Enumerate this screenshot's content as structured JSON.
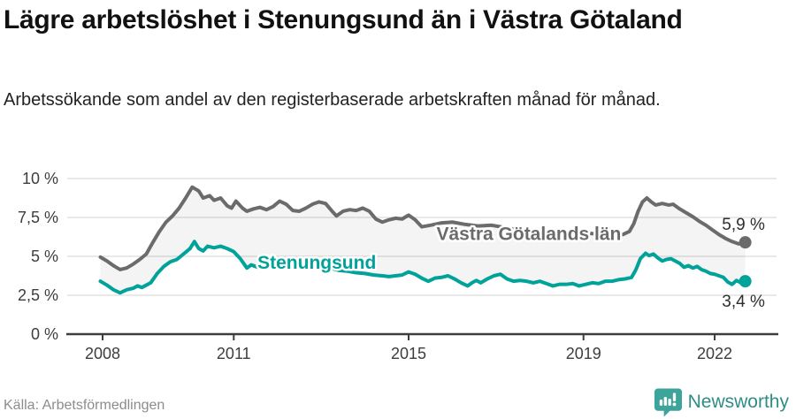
{
  "header": {
    "title": "Lägre arbetslöshet i Stenungsund än i Västra Götaland",
    "subtitle": "Arbetssökande som andel av den registerbaserade arbetskraften månad för månad."
  },
  "footer": {
    "source": "Källa: Arbetsförmedlingen",
    "brand": "Newsworthy"
  },
  "colors": {
    "title": "#111111",
    "axis_text": "#3d3d3d",
    "gridline": "#e2e2e2",
    "axis_line": "#3d3d3d",
    "band_fill": "rgba(0,0,0,0.045)",
    "brand_icon": "#3da49b",
    "brand_text": "#2f8d86"
  },
  "chart_data": {
    "type": "line",
    "title": "Lägre arbetslöshet i Stenungsund än i Västra Götaland",
    "subtitle": "Arbetssökande som andel av den registerbaserade arbetskraften månad för månad.",
    "xlabel": "",
    "ylabel": "",
    "grid": true,
    "legend_position": "inline-labels",
    "xlim": [
      2007.8,
      2023.4
    ],
    "ylim": [
      0,
      10.7
    ],
    "x_ticks": [
      {
        "value": 2008,
        "label": "2008"
      },
      {
        "value": 2011,
        "label": "2011"
      },
      {
        "value": 2015,
        "label": "2015"
      },
      {
        "value": 2019,
        "label": "2019"
      },
      {
        "value": 2022,
        "label": "2022"
      }
    ],
    "y_ticks": [
      {
        "value": 0,
        "label": "0 %"
      },
      {
        "value": 2.5,
        "label": "2,5 %"
      },
      {
        "value": 5,
        "label": "5 %"
      },
      {
        "value": 7.5,
        "label": "7,5 %"
      },
      {
        "value": 10,
        "label": "10 %"
      }
    ],
    "band_fill": "rgba(0,0,0,0.045)",
    "series": [
      {
        "name": "Västra Götalands län",
        "color": "#6b6b6b",
        "end_value": 5.9,
        "end_value_label": {
          "text": "5,9 %",
          "x": 2023.15,
          "y": 7.1
        },
        "name_label": {
          "x": 2017.75,
          "y": 6.45
        },
        "points": [
          [
            2007.95,
            4.95
          ],
          [
            2008.1,
            4.7
          ],
          [
            2008.25,
            4.4
          ],
          [
            2008.4,
            4.15
          ],
          [
            2008.55,
            4.25
          ],
          [
            2008.7,
            4.5
          ],
          [
            2008.85,
            4.8
          ],
          [
            2009.0,
            5.15
          ],
          [
            2009.15,
            5.9
          ],
          [
            2009.3,
            6.6
          ],
          [
            2009.45,
            7.2
          ],
          [
            2009.6,
            7.6
          ],
          [
            2009.75,
            8.1
          ],
          [
            2009.9,
            8.75
          ],
          [
            2010.05,
            9.45
          ],
          [
            2010.2,
            9.2
          ],
          [
            2010.3,
            8.75
          ],
          [
            2010.45,
            8.9
          ],
          [
            2010.55,
            8.6
          ],
          [
            2010.7,
            8.75
          ],
          [
            2010.85,
            8.25
          ],
          [
            2010.95,
            8.1
          ],
          [
            2011.05,
            8.55
          ],
          [
            2011.2,
            8.1
          ],
          [
            2011.3,
            7.9
          ],
          [
            2011.45,
            8.05
          ],
          [
            2011.6,
            8.15
          ],
          [
            2011.75,
            8.0
          ],
          [
            2011.9,
            8.2
          ],
          [
            2012.05,
            8.55
          ],
          [
            2012.2,
            8.35
          ],
          [
            2012.35,
            7.95
          ],
          [
            2012.5,
            7.9
          ],
          [
            2012.65,
            8.1
          ],
          [
            2012.8,
            8.35
          ],
          [
            2012.95,
            8.5
          ],
          [
            2013.1,
            8.4
          ],
          [
            2013.25,
            7.9
          ],
          [
            2013.35,
            7.6
          ],
          [
            2013.5,
            7.9
          ],
          [
            2013.65,
            8.0
          ],
          [
            2013.8,
            7.95
          ],
          [
            2013.95,
            8.1
          ],
          [
            2014.1,
            7.9
          ],
          [
            2014.25,
            7.4
          ],
          [
            2014.4,
            7.2
          ],
          [
            2014.55,
            7.35
          ],
          [
            2014.7,
            7.45
          ],
          [
            2014.85,
            7.4
          ],
          [
            2015.0,
            7.65
          ],
          [
            2015.15,
            7.35
          ],
          [
            2015.3,
            6.9
          ],
          [
            2015.5,
            7.0
          ],
          [
            2015.75,
            7.15
          ],
          [
            2016.0,
            7.2
          ],
          [
            2016.3,
            7.05
          ],
          [
            2016.6,
            6.95
          ],
          [
            2016.9,
            7.0
          ],
          [
            2017.2,
            6.85
          ],
          [
            2017.5,
            6.7
          ],
          [
            2017.8,
            6.6
          ],
          [
            2018.1,
            6.5
          ],
          [
            2018.4,
            6.45
          ],
          [
            2018.7,
            6.4
          ],
          [
            2019.0,
            6.5
          ],
          [
            2019.3,
            6.45
          ],
          [
            2019.6,
            6.35
          ],
          [
            2019.9,
            6.4
          ],
          [
            2020.05,
            6.6
          ],
          [
            2020.15,
            7.1
          ],
          [
            2020.25,
            7.9
          ],
          [
            2020.35,
            8.5
          ],
          [
            2020.45,
            8.75
          ],
          [
            2020.55,
            8.5
          ],
          [
            2020.65,
            8.3
          ],
          [
            2020.8,
            8.4
          ],
          [
            2020.95,
            8.3
          ],
          [
            2021.05,
            8.35
          ],
          [
            2021.2,
            8.05
          ],
          [
            2021.35,
            7.8
          ],
          [
            2021.5,
            7.55
          ],
          [
            2021.65,
            7.25
          ],
          [
            2021.8,
            7.0
          ],
          [
            2021.95,
            6.7
          ],
          [
            2022.1,
            6.4
          ],
          [
            2022.25,
            6.15
          ],
          [
            2022.4,
            5.95
          ],
          [
            2022.55,
            5.8
          ],
          [
            2022.7,
            5.9
          ]
        ]
      },
      {
        "name": "Stenungsund",
        "color": "#00a29a",
        "end_value": 3.4,
        "end_value_label": {
          "text": "3,4 %",
          "x": 2023.15,
          "y": 2.15
        },
        "name_label": {
          "x": 2012.9,
          "y": 4.6
        },
        "points": [
          [
            2007.95,
            3.4
          ],
          [
            2008.1,
            3.15
          ],
          [
            2008.25,
            2.85
          ],
          [
            2008.4,
            2.65
          ],
          [
            2008.55,
            2.85
          ],
          [
            2008.7,
            2.95
          ],
          [
            2008.8,
            3.1
          ],
          [
            2008.9,
            3.0
          ],
          [
            2009.0,
            3.15
          ],
          [
            2009.1,
            3.3
          ],
          [
            2009.25,
            3.9
          ],
          [
            2009.4,
            4.35
          ],
          [
            2009.55,
            4.65
          ],
          [
            2009.7,
            4.8
          ],
          [
            2009.85,
            5.15
          ],
          [
            2010.0,
            5.5
          ],
          [
            2010.1,
            5.95
          ],
          [
            2010.2,
            5.5
          ],
          [
            2010.3,
            5.35
          ],
          [
            2010.4,
            5.65
          ],
          [
            2010.55,
            5.55
          ],
          [
            2010.7,
            5.65
          ],
          [
            2010.85,
            5.5
          ],
          [
            2011.0,
            5.3
          ],
          [
            2011.15,
            4.85
          ],
          [
            2011.3,
            4.25
          ],
          [
            2011.4,
            4.45
          ],
          [
            2011.55,
            4.3
          ],
          [
            2011.7,
            4.5
          ],
          [
            2011.85,
            4.45
          ],
          [
            2012.0,
            4.6
          ],
          [
            2012.2,
            4.45
          ],
          [
            2012.4,
            4.35
          ],
          [
            2012.6,
            4.45
          ],
          [
            2012.8,
            4.4
          ],
          [
            2013.0,
            4.45
          ],
          [
            2013.2,
            4.25
          ],
          [
            2013.4,
            4.1
          ],
          [
            2013.6,
            4.05
          ],
          [
            2013.8,
            3.95
          ],
          [
            2014.0,
            3.9
          ],
          [
            2014.2,
            3.8
          ],
          [
            2014.4,
            3.75
          ],
          [
            2014.55,
            3.7
          ],
          [
            2014.7,
            3.75
          ],
          [
            2014.85,
            3.8
          ],
          [
            2015.0,
            4.0
          ],
          [
            2015.15,
            3.85
          ],
          [
            2015.3,
            3.6
          ],
          [
            2015.45,
            3.4
          ],
          [
            2015.6,
            3.6
          ],
          [
            2015.75,
            3.65
          ],
          [
            2015.9,
            3.75
          ],
          [
            2016.05,
            3.55
          ],
          [
            2016.2,
            3.3
          ],
          [
            2016.35,
            3.1
          ],
          [
            2016.45,
            3.3
          ],
          [
            2016.55,
            3.45
          ],
          [
            2016.65,
            3.3
          ],
          [
            2016.8,
            3.55
          ],
          [
            2016.95,
            3.75
          ],
          [
            2017.1,
            3.85
          ],
          [
            2017.25,
            3.55
          ],
          [
            2017.4,
            3.4
          ],
          [
            2017.55,
            3.45
          ],
          [
            2017.7,
            3.4
          ],
          [
            2017.85,
            3.3
          ],
          [
            2018.0,
            3.4
          ],
          [
            2018.15,
            3.25
          ],
          [
            2018.3,
            3.1
          ],
          [
            2018.45,
            3.2
          ],
          [
            2018.6,
            3.2
          ],
          [
            2018.75,
            3.25
          ],
          [
            2018.9,
            3.1
          ],
          [
            2019.05,
            3.2
          ],
          [
            2019.2,
            3.3
          ],
          [
            2019.35,
            3.25
          ],
          [
            2019.5,
            3.4
          ],
          [
            2019.65,
            3.4
          ],
          [
            2019.8,
            3.5
          ],
          [
            2019.95,
            3.55
          ],
          [
            2020.1,
            3.65
          ],
          [
            2020.2,
            4.15
          ],
          [
            2020.3,
            4.85
          ],
          [
            2020.42,
            5.2
          ],
          [
            2020.5,
            5.05
          ],
          [
            2020.6,
            5.15
          ],
          [
            2020.7,
            4.9
          ],
          [
            2020.8,
            4.7
          ],
          [
            2020.9,
            4.8
          ],
          [
            2021.0,
            4.85
          ],
          [
            2021.1,
            4.7
          ],
          [
            2021.2,
            4.55
          ],
          [
            2021.3,
            4.3
          ],
          [
            2021.4,
            4.4
          ],
          [
            2021.5,
            4.25
          ],
          [
            2021.6,
            4.35
          ],
          [
            2021.7,
            4.15
          ],
          [
            2021.8,
            4.05
          ],
          [
            2021.9,
            3.9
          ],
          [
            2022.0,
            3.85
          ],
          [
            2022.1,
            3.75
          ],
          [
            2022.2,
            3.65
          ],
          [
            2022.3,
            3.35
          ],
          [
            2022.4,
            3.2
          ],
          [
            2022.5,
            3.45
          ],
          [
            2022.6,
            3.3
          ],
          [
            2022.7,
            3.4
          ]
        ]
      }
    ]
  }
}
